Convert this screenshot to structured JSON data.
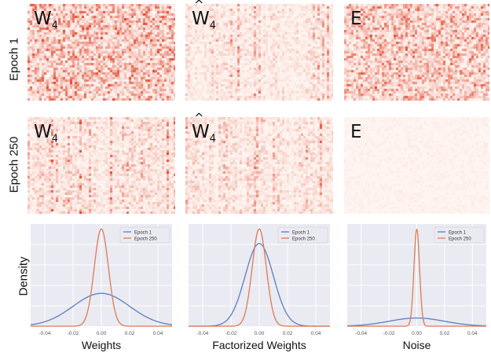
{
  "row_labels": [
    "Epoch 1",
    "Epoch 250"
  ],
  "density_ylabel": "Density",
  "heatmaps": [
    {
      "row": 0,
      "col": 0,
      "label_base": "W",
      "label_sub": "4",
      "hat": false,
      "intensity": 0.55,
      "pattern": "noise"
    },
    {
      "row": 0,
      "col": 1,
      "label_base": "W",
      "label_sub": "4",
      "hat": true,
      "intensity": 0.25,
      "pattern": "columns"
    },
    {
      "row": 0,
      "col": 2,
      "label_base": "E",
      "label_sub": "",
      "hat": false,
      "intensity": 0.5,
      "pattern": "noise"
    },
    {
      "row": 1,
      "col": 0,
      "label_base": "W",
      "label_sub": "4",
      "hat": false,
      "intensity": 0.35,
      "pattern": "columns"
    },
    {
      "row": 1,
      "col": 1,
      "label_base": "W",
      "label_sub": "4",
      "hat": true,
      "intensity": 0.32,
      "pattern": "columns"
    },
    {
      "row": 1,
      "col": 2,
      "label_base": "E",
      "label_sub": "",
      "hat": false,
      "intensity": 0.04,
      "pattern": "noise"
    }
  ],
  "colors": {
    "epoch1": "#5b7fbf",
    "epoch250": "#e07a52",
    "panel_bg": "#eaeaf2",
    "heat_max": "#e0452c"
  },
  "chart_data": [
    {
      "type": "line",
      "xlabel": "Weights",
      "xlim": [
        -0.05,
        0.05
      ],
      "xticks": [
        -0.04,
        -0.02,
        0.0,
        0.02,
        0.04
      ],
      "xtick_labels": [
        "-0.04",
        "-0.02",
        "0.00",
        "0.02",
        "0.04"
      ],
      "legend": "top-right",
      "grid": true,
      "series": [
        {
          "name": "Epoch 1",
          "x": [
            -0.05,
            -0.04,
            -0.03,
            -0.02,
            -0.01,
            0.0,
            0.01,
            0.02,
            0.03,
            0.04,
            0.05
          ],
          "y": [
            0.4,
            1.3,
            3.6,
            7.4,
            11.6,
            13.5,
            11.6,
            7.4,
            3.6,
            1.3,
            0.4
          ]
        },
        {
          "name": "Epoch 250",
          "x": [
            -0.05,
            -0.03,
            -0.02,
            -0.01,
            -0.005,
            0.0,
            0.005,
            0.01,
            0.02,
            0.03,
            0.05
          ],
          "y": [
            0.0,
            0.4,
            2.0,
            9.2,
            20.0,
            40.0,
            20.0,
            9.2,
            2.0,
            0.4,
            0.0
          ]
        }
      ]
    },
    {
      "type": "line",
      "xlabel": "Factorized Weights",
      "xlim": [
        -0.05,
        0.05
      ],
      "xticks": [
        -0.04,
        -0.02,
        0.0,
        0.02,
        0.04
      ],
      "xtick_labels": [
        "-0.04",
        "-0.02",
        "0.00",
        "0.02",
        "0.04"
      ],
      "legend": "top-right",
      "grid": true,
      "series": [
        {
          "name": "Epoch 1",
          "x": [
            -0.05,
            -0.03,
            -0.02,
            -0.01,
            -0.005,
            0.0,
            0.005,
            0.01,
            0.02,
            0.03,
            0.05
          ],
          "y": [
            0.0,
            0.2,
            1.4,
            8.0,
            21.0,
            34.0,
            21.0,
            8.0,
            1.4,
            0.2,
            0.0
          ]
        },
        {
          "name": "Epoch 250",
          "x": [
            -0.05,
            -0.03,
            -0.02,
            -0.01,
            -0.005,
            0.0,
            0.005,
            0.01,
            0.02,
            0.03,
            0.05
          ],
          "y": [
            0.0,
            0.3,
            1.8,
            9.0,
            22.0,
            40.0,
            22.0,
            9.0,
            1.8,
            0.3,
            0.0
          ]
        }
      ]
    },
    {
      "type": "line",
      "xlabel": "Noise",
      "xlim": [
        -0.05,
        0.05
      ],
      "xticks": [
        -0.04,
        -0.02,
        0.0,
        0.02,
        0.04
      ],
      "xtick_labels": [
        "-0.04",
        "-0.02",
        "0.00",
        "0.02",
        "0.04"
      ],
      "legend": "top-right",
      "grid": true,
      "series": [
        {
          "name": "Epoch 1",
          "x": [
            -0.05,
            -0.04,
            -0.03,
            -0.02,
            -0.01,
            0.0,
            0.01,
            0.02,
            0.03,
            0.04,
            0.05
          ],
          "y": [
            0.1,
            0.5,
            1.8,
            4.3,
            6.9,
            8.0,
            6.9,
            4.3,
            1.8,
            0.5,
            0.1
          ]
        },
        {
          "name": "Epoch 250",
          "x": [
            -0.05,
            -0.006,
            -0.004,
            -0.002,
            -0.001,
            0.0,
            0.001,
            0.002,
            0.004,
            0.006,
            0.05
          ],
          "y": [
            0.0,
            2.0,
            12.0,
            48.0,
            80.0,
            95.0,
            80.0,
            48.0,
            12.0,
            2.0,
            0.0
          ]
        }
      ]
    }
  ]
}
